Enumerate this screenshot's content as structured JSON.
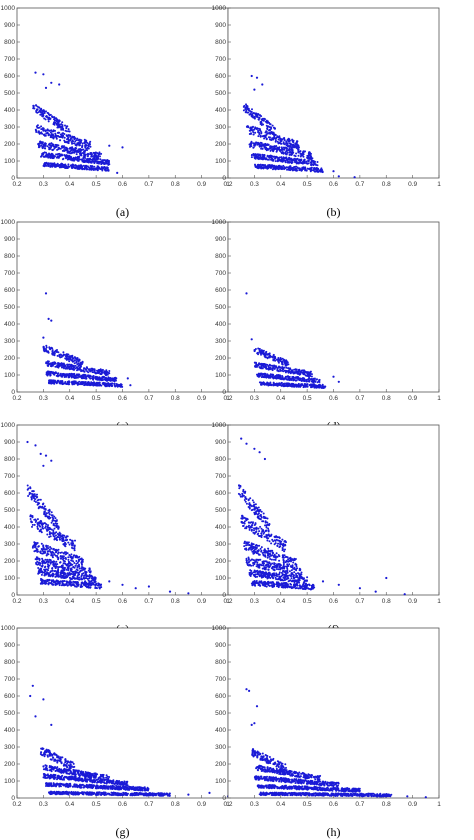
{
  "figure": {
    "panels": [
      {
        "label": "(a)"
      },
      {
        "label": "(b)"
      },
      {
        "label": "(c)"
      },
      {
        "label": "(d)"
      },
      {
        "label": "(e)"
      },
      {
        "label": "(f)"
      },
      {
        "label": "(g)"
      },
      {
        "label": "(h)"
      }
    ]
  },
  "chart_data": [
    {
      "type": "scatter",
      "panel": "(a)",
      "marker_color": "#1a1ad6",
      "xlim": [
        0.2,
        1
      ],
      "ylim": [
        0,
        1000
      ],
      "x_ticks": [
        "0.2",
        "0.3",
        "0.4",
        "0.5",
        "0.6",
        "0.7",
        "0.8",
        "0.9",
        "1"
      ],
      "y_ticks": [
        "0",
        "100",
        "200",
        "300",
        "400",
        "500",
        "600",
        "700",
        "800",
        "900",
        "1000"
      ],
      "bands": [
        {
          "y": 420,
          "x": [
            0.26,
            0.4
          ],
          "spread": 25
        },
        {
          "y": 290,
          "x": [
            0.27,
            0.48
          ],
          "spread": 25
        },
        {
          "y": 200,
          "x": [
            0.28,
            0.52
          ],
          "spread": 20
        },
        {
          "y": 140,
          "x": [
            0.29,
            0.55
          ],
          "spread": 15
        },
        {
          "y": 80,
          "x": [
            0.3,
            0.55
          ],
          "spread": 12
        }
      ],
      "outliers": [
        [
          0.27,
          620
        ],
        [
          0.3,
          610
        ],
        [
          0.33,
          560
        ],
        [
          0.36,
          550
        ],
        [
          0.31,
          530
        ],
        [
          0.55,
          190
        ],
        [
          0.6,
          180
        ],
        [
          0.58,
          30
        ]
      ]
    },
    {
      "type": "scatter",
      "panel": "(b)",
      "marker_color": "#1a1ad6",
      "xlim": [
        0.2,
        1
      ],
      "ylim": [
        0,
        1000
      ],
      "x_ticks": [
        "0.2",
        "0.3",
        "0.4",
        "0.5",
        "0.6",
        "0.7",
        "0.8",
        "0.9",
        "1"
      ],
      "y_ticks": [
        "0",
        "100",
        "200",
        "300",
        "400",
        "500",
        "600",
        "700",
        "800",
        "900",
        "1000"
      ],
      "bands": [
        {
          "y": 420,
          "x": [
            0.26,
            0.38
          ],
          "spread": 25
        },
        {
          "y": 290,
          "x": [
            0.27,
            0.47
          ],
          "spread": 25
        },
        {
          "y": 200,
          "x": [
            0.28,
            0.52
          ],
          "spread": 20
        },
        {
          "y": 130,
          "x": [
            0.29,
            0.54
          ],
          "spread": 15
        },
        {
          "y": 70,
          "x": [
            0.3,
            0.56
          ],
          "spread": 12
        }
      ],
      "outliers": [
        [
          0.29,
          600
        ],
        [
          0.31,
          590
        ],
        [
          0.33,
          550
        ],
        [
          0.3,
          520
        ],
        [
          0.6,
          40
        ],
        [
          0.62,
          10
        ],
        [
          0.68,
          5
        ]
      ]
    },
    {
      "type": "scatter",
      "panel": "(c)",
      "marker_color": "#1a1ad6",
      "xlim": [
        0.2,
        1
      ],
      "ylim": [
        0,
        1000
      ],
      "x_ticks": [
        "0.2",
        "0.3",
        "0.4",
        "0.5",
        "0.6",
        "0.7",
        "0.8",
        "0.9",
        "1"
      ],
      "y_ticks": [
        "0",
        "100",
        "200",
        "300",
        "400",
        "500",
        "600",
        "700",
        "800",
        "900",
        "1000"
      ],
      "bands": [
        {
          "y": 260,
          "x": [
            0.3,
            0.45
          ],
          "spread": 20
        },
        {
          "y": 170,
          "x": [
            0.31,
            0.55
          ],
          "spread": 15
        },
        {
          "y": 110,
          "x": [
            0.31,
            0.58
          ],
          "spread": 12
        },
        {
          "y": 60,
          "x": [
            0.32,
            0.6
          ],
          "spread": 10
        }
      ],
      "outliers": [
        [
          0.31,
          580
        ],
        [
          0.32,
          430
        ],
        [
          0.33,
          420
        ],
        [
          0.3,
          320
        ],
        [
          0.62,
          80
        ],
        [
          0.63,
          40
        ]
      ]
    },
    {
      "type": "scatter",
      "panel": "(d)",
      "marker_color": "#1a1ad6",
      "xlim": [
        0.2,
        1
      ],
      "ylim": [
        0,
        1000
      ],
      "x_ticks": [
        "0.2",
        "0.3",
        "0.4",
        "0.5",
        "0.6",
        "0.7",
        "0.8",
        "0.9",
        "1"
      ],
      "y_ticks": [
        "0",
        "100",
        "200",
        "300",
        "400",
        "500",
        "600",
        "700",
        "800",
        "900",
        "1000"
      ],
      "bands": [
        {
          "y": 250,
          "x": [
            0.3,
            0.43
          ],
          "spread": 18
        },
        {
          "y": 160,
          "x": [
            0.3,
            0.52
          ],
          "spread": 15
        },
        {
          "y": 100,
          "x": [
            0.31,
            0.55
          ],
          "spread": 12
        },
        {
          "y": 50,
          "x": [
            0.32,
            0.57
          ],
          "spread": 10
        }
      ],
      "outliers": [
        [
          0.27,
          580
        ],
        [
          0.29,
          310
        ],
        [
          0.6,
          90
        ],
        [
          0.62,
          60
        ]
      ]
    },
    {
      "type": "scatter",
      "panel": "(e)",
      "marker_color": "#1a1ad6",
      "xlim": [
        0.2,
        1
      ],
      "ylim": [
        0,
        1000
      ],
      "x_ticks": [
        "0.2",
        "0.3",
        "0.4",
        "0.5",
        "0.6",
        "0.7",
        "0.8",
        "0.9",
        "1"
      ],
      "y_ticks": [
        "0",
        "100",
        "200",
        "300",
        "400",
        "500",
        "600",
        "700",
        "800",
        "900",
        "1000"
      ],
      "bands": [
        {
          "y": 620,
          "x": [
            0.24,
            0.36
          ],
          "spread": 35
        },
        {
          "y": 440,
          "x": [
            0.25,
            0.42
          ],
          "spread": 35
        },
        {
          "y": 290,
          "x": [
            0.26,
            0.45
          ],
          "spread": 30
        },
        {
          "y": 200,
          "x": [
            0.27,
            0.48
          ],
          "spread": 25
        },
        {
          "y": 140,
          "x": [
            0.28,
            0.5
          ],
          "spread": 20
        },
        {
          "y": 80,
          "x": [
            0.29,
            0.52
          ],
          "spread": 15
        }
      ],
      "outliers": [
        [
          0.24,
          900
        ],
        [
          0.27,
          880
        ],
        [
          0.29,
          830
        ],
        [
          0.31,
          820
        ],
        [
          0.33,
          790
        ],
        [
          0.3,
          760
        ],
        [
          0.55,
          80
        ],
        [
          0.6,
          60
        ],
        [
          0.65,
          40
        ],
        [
          0.7,
          50
        ],
        [
          0.78,
          20
        ],
        [
          0.85,
          10
        ]
      ]
    },
    {
      "type": "scatter",
      "panel": "(f)",
      "marker_color": "#1a1ad6",
      "xlim": [
        0.2,
        1
      ],
      "ylim": [
        0,
        1000
      ],
      "x_ticks": [
        "0.2",
        "0.3",
        "0.4",
        "0.5",
        "0.6",
        "0.7",
        "0.8",
        "0.9",
        "1"
      ],
      "y_ticks": [
        "0",
        "100",
        "200",
        "300",
        "400",
        "500",
        "600",
        "700",
        "800",
        "900",
        "1000"
      ],
      "bands": [
        {
          "y": 620,
          "x": [
            0.24,
            0.36
          ],
          "spread": 35
        },
        {
          "y": 440,
          "x": [
            0.25,
            0.42
          ],
          "spread": 35
        },
        {
          "y": 290,
          "x": [
            0.26,
            0.46
          ],
          "spread": 30
        },
        {
          "y": 200,
          "x": [
            0.27,
            0.48
          ],
          "spread": 25
        },
        {
          "y": 130,
          "x": [
            0.28,
            0.5
          ],
          "spread": 20
        },
        {
          "y": 70,
          "x": [
            0.29,
            0.53
          ],
          "spread": 15
        }
      ],
      "outliers": [
        [
          0.25,
          920
        ],
        [
          0.27,
          890
        ],
        [
          0.3,
          860
        ],
        [
          0.32,
          840
        ],
        [
          0.34,
          800
        ],
        [
          0.56,
          80
        ],
        [
          0.62,
          60
        ],
        [
          0.7,
          40
        ],
        [
          0.76,
          20
        ],
        [
          0.8,
          100
        ],
        [
          0.87,
          5
        ]
      ]
    },
    {
      "type": "scatter",
      "panel": "(g)",
      "marker_color": "#1a1ad6",
      "xlim": [
        0.2,
        1
      ],
      "ylim": [
        0,
        1000
      ],
      "x_ticks": [
        "0.2",
        "0.3",
        "0.4",
        "0.5",
        "0.6",
        "0.7",
        "0.8",
        "0.9",
        "1"
      ],
      "y_ticks": [
        "0",
        "100",
        "200",
        "300",
        "400",
        "500",
        "600",
        "700",
        "800",
        "900",
        "1000"
      ],
      "bands": [
        {
          "y": 280,
          "x": [
            0.29,
            0.42
          ],
          "spread": 25
        },
        {
          "y": 180,
          "x": [
            0.3,
            0.55
          ],
          "spread": 15
        },
        {
          "y": 130,
          "x": [
            0.3,
            0.62
          ],
          "spread": 12
        },
        {
          "y": 80,
          "x": [
            0.31,
            0.7
          ],
          "spread": 10
        },
        {
          "y": 30,
          "x": [
            0.32,
            0.78
          ],
          "spread": 8
        }
      ],
      "outliers": [
        [
          0.26,
          660
        ],
        [
          0.25,
          600
        ],
        [
          0.3,
          580
        ],
        [
          0.27,
          480
        ],
        [
          0.33,
          430
        ],
        [
          0.85,
          20
        ],
        [
          0.93,
          30
        ],
        [
          1.0,
          10
        ]
      ]
    },
    {
      "type": "scatter",
      "panel": "(h)",
      "marker_color": "#1a1ad6",
      "xlim": [
        0.2,
        1
      ],
      "ylim": [
        0,
        1000
      ],
      "x_ticks": [
        "0.2",
        "0.3",
        "0.4",
        "0.5",
        "0.6",
        "0.7",
        "0.8",
        "0.9",
        "1"
      ],
      "y_ticks": [
        "0",
        "100",
        "200",
        "300",
        "400",
        "500",
        "600",
        "700",
        "800",
        "900",
        "1000"
      ],
      "bands": [
        {
          "y": 270,
          "x": [
            0.29,
            0.42
          ],
          "spread": 22
        },
        {
          "y": 180,
          "x": [
            0.3,
            0.55
          ],
          "spread": 15
        },
        {
          "y": 120,
          "x": [
            0.3,
            0.62
          ],
          "spread": 12
        },
        {
          "y": 70,
          "x": [
            0.31,
            0.7
          ],
          "spread": 10
        },
        {
          "y": 25,
          "x": [
            0.32,
            0.82
          ],
          "spread": 8
        }
      ],
      "outliers": [
        [
          0.27,
          640
        ],
        [
          0.28,
          630
        ],
        [
          0.31,
          540
        ],
        [
          0.29,
          430
        ],
        [
          0.3,
          440
        ],
        [
          0.88,
          10
        ],
        [
          0.95,
          5
        ]
      ]
    }
  ]
}
